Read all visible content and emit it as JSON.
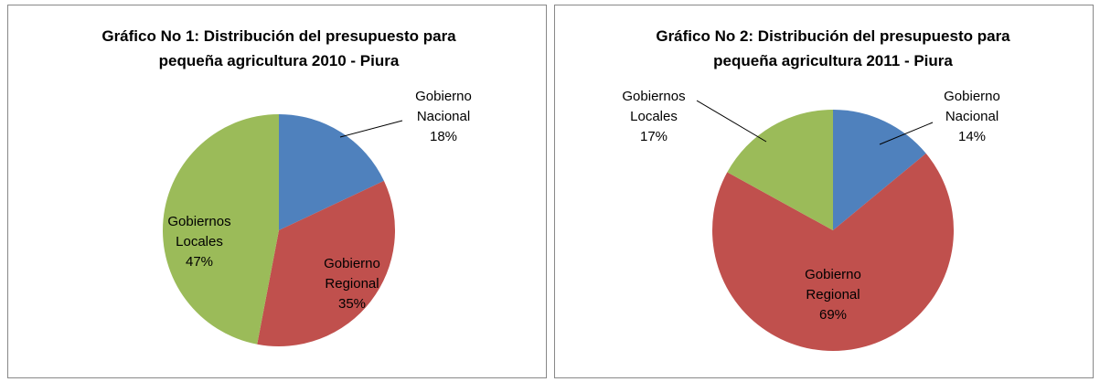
{
  "chart_data": [
    {
      "type": "pie",
      "title": "Gráfico No 1: Distribución del presupuesto para pequeña agricultura 2010 - Piura",
      "categories": [
        "Gobierno Nacional",
        "Gobierno Regional",
        "Gobiernos Locales"
      ],
      "values": [
        18,
        35,
        47
      ],
      "value_labels": [
        "18%",
        "35%",
        "47%"
      ],
      "colors": [
        "#4f81bd",
        "#c0504d",
        "#9bbb59"
      ]
    },
    {
      "type": "pie",
      "title": "Gráfico No 2: Distribución del presupuesto para pequeña agricultura 2011 - Piura",
      "categories": [
        "Gobierno Nacional",
        "Gobierno Regional",
        "Gobiernos Locales"
      ],
      "values": [
        14,
        69,
        17
      ],
      "value_labels": [
        "14%",
        "69%",
        "17%"
      ],
      "colors": [
        "#4f81bd",
        "#c0504d",
        "#9bbb59"
      ]
    }
  ]
}
